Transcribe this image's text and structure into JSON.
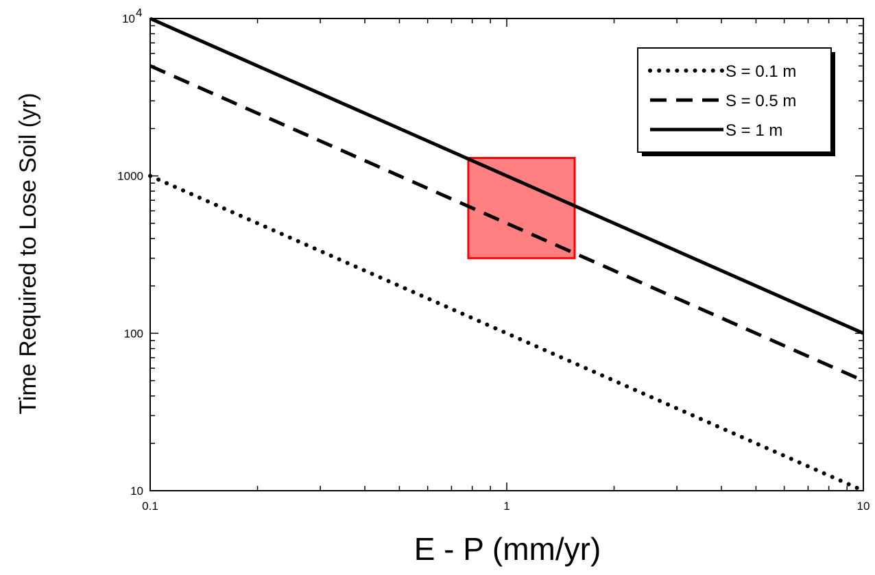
{
  "chart_data": {
    "type": "line",
    "xlabel": "E - P (mm/yr)",
    "ylabel": "Time Required to Lose Soil (yr)",
    "x_scale": "log",
    "y_scale": "log",
    "xlim": [
      0.1,
      10
    ],
    "ylim": [
      10,
      10000
    ],
    "x_ticks": [
      {
        "value": 0.1,
        "label": "0.1"
      },
      {
        "value": 1,
        "label": "1"
      },
      {
        "value": 10,
        "label": "10"
      }
    ],
    "y_ticks": [
      {
        "value": 10,
        "label": "10",
        "exp": ""
      },
      {
        "value": 100,
        "label": "100",
        "exp": ""
      },
      {
        "value": 1000,
        "label": "1000",
        "exp": ""
      },
      {
        "value": 10000,
        "label": "10",
        "exp": "4"
      }
    ],
    "grid": false,
    "legend_position": "top-right",
    "series": [
      {
        "name": "S = 0.1 m",
        "style": "dotted",
        "color": "#000000",
        "x": [
          0.1,
          10
        ],
        "y": [
          1000,
          10
        ]
      },
      {
        "name": "S = 0.5 m",
        "style": "dashed",
        "color": "#000000",
        "x": [
          0.1,
          10
        ],
        "y": [
          5000,
          50
        ]
      },
      {
        "name": "S = 1 m",
        "style": "solid",
        "color": "#000000",
        "x": [
          0.1,
          10
        ],
        "y": [
          10000,
          100
        ]
      }
    ],
    "highlight_box": {
      "x_range": [
        0.78,
        1.55
      ],
      "y_range": [
        300,
        1300
      ],
      "fill": "#ff8080",
      "stroke": "#ff0000"
    }
  }
}
